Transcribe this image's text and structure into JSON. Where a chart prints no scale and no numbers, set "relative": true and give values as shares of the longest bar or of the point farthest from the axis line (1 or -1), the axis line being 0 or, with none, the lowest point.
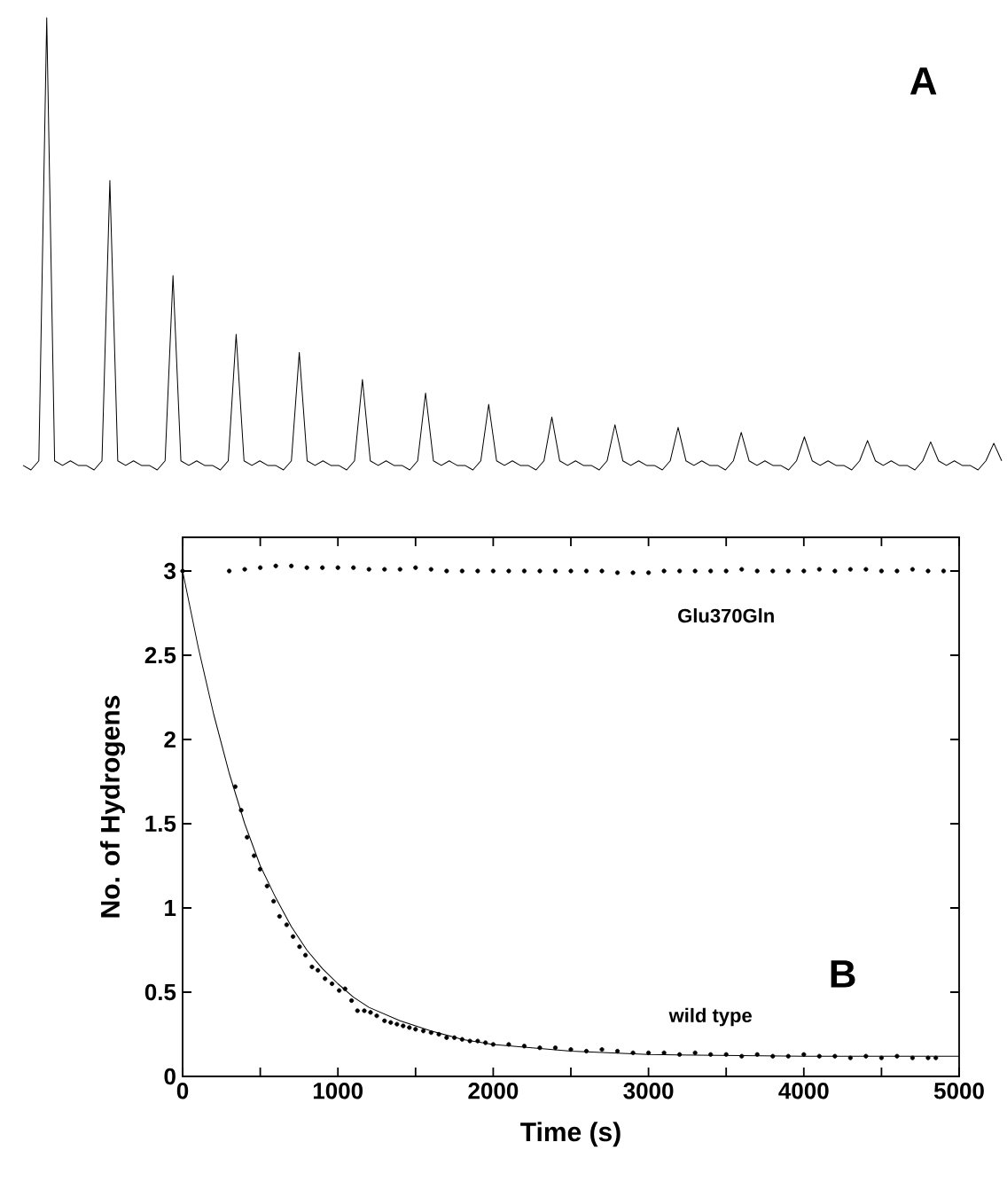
{
  "chart_data": [
    {
      "type": "line",
      "title": "A",
      "relative": true,
      "color": "#000000",
      "categories": [
        null,
        null,
        null,
        null,
        null,
        null,
        null,
        null,
        null,
        null,
        null,
        null,
        null,
        null,
        null,
        null,
        null,
        null,
        null,
        null,
        null,
        null,
        null,
        null,
        null,
        null,
        null,
        null,
        null,
        null,
        null,
        null,
        null,
        null,
        null,
        null,
        null,
        null,
        null,
        null,
        null,
        null,
        null,
        null,
        null,
        null,
        null,
        null,
        null,
        null,
        null,
        null,
        null,
        null,
        null,
        null,
        null,
        null,
        null,
        null,
        null,
        null,
        null,
        null,
        null,
        null,
        null,
        null,
        null,
        null,
        null,
        null,
        null,
        null,
        null,
        null,
        null,
        null,
        null,
        null,
        null,
        null,
        null,
        null,
        null,
        null,
        null,
        null,
        null,
        null,
        null,
        null,
        null,
        null,
        null,
        null,
        null,
        null,
        null,
        null,
        null,
        null,
        null,
        null,
        null,
        null,
        null,
        null,
        null,
        null,
        null,
        null,
        null,
        null,
        null,
        null,
        null,
        null,
        null,
        null,
        null,
        null,
        null,
        null,
        null
      ],
      "values": [
        0.01,
        0,
        0.02,
        1,
        0.02,
        0.01,
        0.02,
        0.01,
        0.01,
        0,
        0.02,
        0.64,
        0.02,
        0.01,
        0.02,
        0.01,
        0.01,
        0,
        0.02,
        0.43,
        0.02,
        0.01,
        0.02,
        0.01,
        0.01,
        0,
        0.02,
        0.3,
        0.02,
        0.01,
        0.02,
        0.01,
        0.01,
        0,
        0.02,
        0.26,
        0.02,
        0.01,
        0.02,
        0.01,
        0.01,
        0,
        0.02,
        0.2,
        0.02,
        0.01,
        0.02,
        0.01,
        0.01,
        0,
        0.02,
        0.17,
        0.02,
        0.01,
        0.02,
        0.01,
        0.01,
        0,
        0.02,
        0.145,
        0.02,
        0.01,
        0.02,
        0.01,
        0.01,
        0,
        0.02,
        0.117,
        0.02,
        0.01,
        0.02,
        0.01,
        0.01,
        0,
        0.02,
        0.1,
        0.02,
        0.01,
        0.02,
        0.01,
        0.01,
        0,
        0.02,
        0.094,
        0.02,
        0.01,
        0.02,
        0.01,
        0.01,
        0,
        0.02,
        0.083,
        0.02,
        0.01,
        0.02,
        0.01,
        0.01,
        0,
        0.02,
        0.073,
        0.02,
        0.01,
        0.02,
        0.01,
        0.01,
        0,
        0.02,
        0.065,
        0.02,
        0.01,
        0.02,
        0.01,
        0.01,
        0,
        0.02,
        0.062,
        0.02,
        0.01,
        0.02,
        0.01,
        0.01,
        0,
        0.02,
        0.059,
        0.02
      ]
    },
    {
      "type": "scatter",
      "title": "B",
      "xlabel": "Time (s)",
      "ylabel": "No. of Hydrogens",
      "xlim": [
        0,
        5000
      ],
      "xticks": [
        0,
        1000,
        2000,
        3000,
        4000,
        5000
      ],
      "ylim": [
        0,
        3.2
      ],
      "yticks": [
        0,
        0.5,
        1,
        1.5,
        2,
        2.5,
        3
      ],
      "series": [
        {
          "name": "Glu370Gln",
          "color": "#000000",
          "marker": "circle",
          "x": [
            0,
            300,
            400,
            500,
            600,
            700,
            800,
            900,
            1000,
            1100,
            1200,
            1300,
            1400,
            1500,
            1600,
            1700,
            1800,
            1900,
            2000,
            2100,
            2200,
            2300,
            2400,
            2500,
            2600,
            2700,
            2800,
            2900,
            3000,
            3100,
            3200,
            3300,
            3400,
            3500,
            3600,
            3700,
            3800,
            3900,
            4000,
            4100,
            4200,
            4300,
            4400,
            4500,
            4600,
            4700,
            4800,
            4900
          ],
          "values": [
            3.0,
            3.0,
            3.01,
            3.02,
            3.03,
            3.03,
            3.02,
            3.02,
            3.02,
            3.02,
            3.01,
            3.01,
            3.01,
            3.02,
            3.01,
            3.0,
            3.0,
            3.0,
            3.0,
            3.0,
            3.0,
            3.0,
            3.0,
            3.0,
            3.0,
            3.0,
            2.99,
            2.99,
            2.99,
            3.0,
            3.0,
            3.0,
            3.0,
            3.0,
            3.01,
            3.0,
            3.0,
            3.0,
            3.0,
            3.01,
            3.0,
            3.01,
            3.01,
            3.0,
            3.0,
            3.01,
            3.0,
            3.0
          ]
        },
        {
          "name": "wild type",
          "color": "#000000",
          "marker": "circle",
          "x": [
            339,
            377,
            415,
            460,
            499,
            544,
            586,
            624,
            670,
            711,
            753,
            791,
            833,
            871,
            917,
            962,
            1008,
            1046,
            1088,
            1126,
            1170,
            1210,
            1250,
            1300,
            1340,
            1380,
            1420,
            1460,
            1500,
            1550,
            1600,
            1650,
            1700,
            1750,
            1800,
            1850,
            1900,
            1950,
            2000,
            2100,
            2200,
            2300,
            2400,
            2500,
            2600,
            2700,
            2800,
            2900,
            3000,
            3100,
            3200,
            3300,
            3400,
            3500,
            3600,
            3700,
            3800,
            3900,
            4000,
            4100,
            4200,
            4300,
            4400,
            4500,
            4600,
            4700,
            4800,
            4850
          ],
          "values": [
            1.72,
            1.58,
            1.42,
            1.31,
            1.23,
            1.13,
            1.04,
            0.95,
            0.9,
            0.83,
            0.77,
            0.72,
            0.65,
            0.63,
            0.58,
            0.55,
            0.51,
            0.52,
            0.45,
            0.39,
            0.39,
            0.38,
            0.36,
            0.33,
            0.32,
            0.31,
            0.3,
            0.29,
            0.28,
            0.27,
            0.26,
            0.25,
            0.23,
            0.23,
            0.22,
            0.21,
            0.21,
            0.2,
            0.19,
            0.19,
            0.18,
            0.17,
            0.17,
            0.16,
            0.15,
            0.16,
            0.15,
            0.14,
            0.14,
            0.14,
            0.13,
            0.14,
            0.13,
            0.13,
            0.12,
            0.13,
            0.12,
            0.12,
            0.13,
            0.12,
            0.12,
            0.11,
            0.12,
            0.11,
            0.12,
            0.11,
            0.11,
            0.11
          ]
        },
        {
          "type": "line",
          "color": "#000000",
          "marker": "none",
          "x": [
            0,
            100,
            200,
            300,
            400,
            500,
            600,
            700,
            800,
            900,
            1000,
            1100,
            1200,
            1400,
            1600,
            1800,
            2000,
            2500,
            3000,
            4000,
            5000
          ],
          "values": [
            3.0,
            2.55,
            2.15,
            1.8,
            1.5,
            1.25,
            1.06,
            0.89,
            0.75,
            0.64,
            0.55,
            0.47,
            0.41,
            0.33,
            0.27,
            0.22,
            0.19,
            0.15,
            0.13,
            0.12,
            0.12
          ]
        }
      ]
    }
  ]
}
